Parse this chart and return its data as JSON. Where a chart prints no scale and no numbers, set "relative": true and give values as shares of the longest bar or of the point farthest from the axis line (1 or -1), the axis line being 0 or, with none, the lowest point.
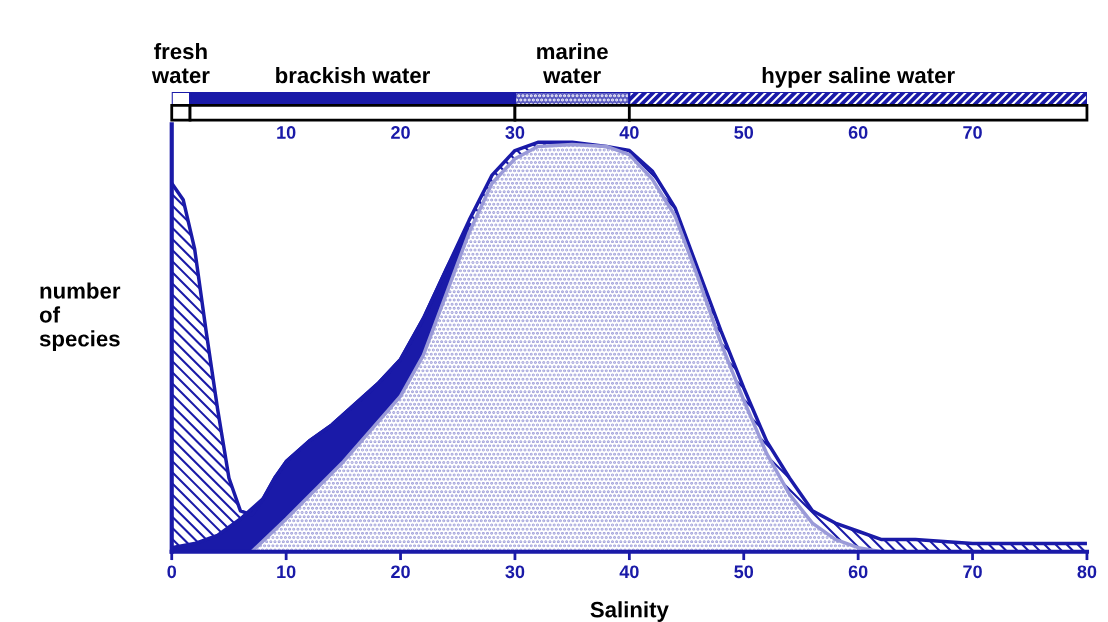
{
  "chart_data": [
    {
      "type": "area",
      "relative": true,
      "xlabel": "Salinity",
      "ylabel": "number\nof\nspecies",
      "xlim": [
        0,
        80
      ],
      "xticks": [
        0,
        10,
        20,
        30,
        40,
        50,
        60,
        70,
        80
      ],
      "series": [
        {
          "color": "#1a1aa8",
          "x": [
            0,
            1,
            2,
            3,
            4,
            5,
            6,
            7,
            8,
            9,
            10,
            12,
            14,
            16,
            18,
            20,
            22,
            24,
            26,
            28,
            30,
            32,
            35,
            38,
            40,
            42,
            44,
            46,
            48,
            50,
            52,
            54,
            56,
            58,
            60,
            62,
            65,
            70,
            75,
            80
          ],
          "values": [
            0.9,
            0.86,
            0.74,
            0.54,
            0.35,
            0.18,
            0.1,
            0.09,
            0.13,
            0.18,
            0.22,
            0.27,
            0.31,
            0.36,
            0.41,
            0.47,
            0.57,
            0.69,
            0.81,
            0.92,
            0.98,
            1.0,
            1.0,
            0.99,
            0.98,
            0.93,
            0.84,
            0.69,
            0.54,
            0.4,
            0.27,
            0.18,
            0.1,
            0.07,
            0.05,
            0.03,
            0.03,
            0.02,
            0.02,
            0.02
          ]
        },
        {
          "color": "#1a1aa8",
          "x": [
            0,
            2,
            4,
            6,
            8,
            9,
            10,
            12,
            14,
            16,
            18,
            20,
            22,
            24,
            26
          ],
          "values": [
            0.01,
            0.02,
            0.04,
            0.08,
            0.13,
            0.18,
            0.22,
            0.27,
            0.31,
            0.36,
            0.41,
            0.47,
            0.57,
            0.69,
            0.8
          ]
        },
        {
          "color": "#9a9ad8",
          "x": [
            7,
            10,
            15,
            20,
            22,
            24,
            26,
            28,
            30,
            32,
            35,
            38,
            40,
            42,
            44,
            46,
            48,
            50,
            52,
            54,
            56,
            58,
            60,
            62
          ],
          "values": [
            0,
            0.08,
            0.22,
            0.38,
            0.48,
            0.63,
            0.78,
            0.9,
            0.96,
            0.99,
            0.995,
            0.99,
            0.97,
            0.91,
            0.82,
            0.67,
            0.51,
            0.37,
            0.24,
            0.14,
            0.07,
            0.03,
            0.01,
            0
          ]
        }
      ]
    },
    {
      "type": "bar",
      "orientation": "horizontal",
      "stacked": true,
      "categories": [
        null
      ],
      "xlim": [
        0,
        80
      ],
      "xticks": [
        10,
        20,
        30,
        40,
        50,
        60,
        70
      ],
      "series": [
        {
          "name": "fresh\nwater",
          "color": "#ffffff",
          "values": [
            1.6
          ]
        },
        {
          "name": "brackish water",
          "color": "#1a1aa8",
          "values": [
            28.4
          ]
        },
        {
          "name": "marine\nwater",
          "color": "#5a5ac0",
          "values": [
            10
          ]
        },
        {
          "name": "hyper saline water",
          "color": "#1a1aa8",
          "values": [
            40
          ]
        }
      ]
    }
  ]
}
